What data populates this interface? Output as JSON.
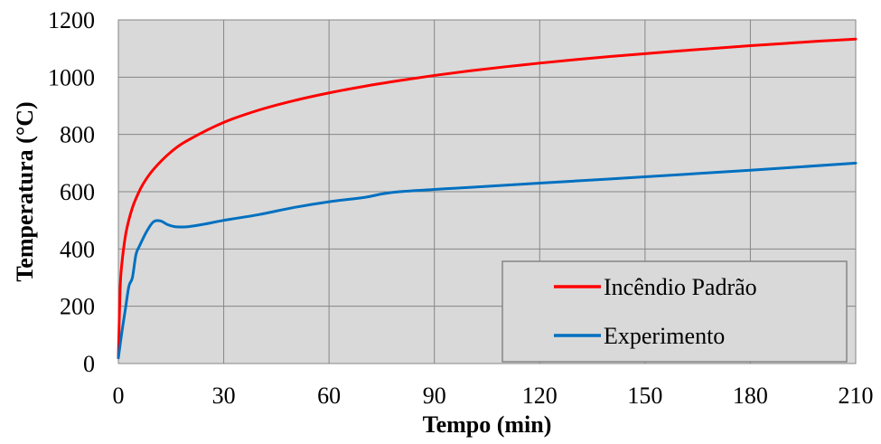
{
  "chart_data": {
    "type": "line",
    "xlabel": "Tempo (min)",
    "ylabel": "Temperatura (°C)",
    "xlim": [
      0,
      210
    ],
    "ylim": [
      0,
      1200
    ],
    "xticks": [
      0,
      30,
      60,
      90,
      120,
      150,
      180,
      210
    ],
    "yticks": [
      0,
      200,
      400,
      600,
      800,
      1000,
      1200
    ],
    "grid": true,
    "legend_position": "bottom-right",
    "background_color": "#d9d9d9",
    "series": [
      {
        "name": "Incêndio Padrão",
        "color": "#ff0000",
        "x": [
          0,
          0.5,
          1,
          2,
          3,
          4,
          5,
          7,
          10,
          15,
          20,
          30,
          40,
          50,
          60,
          70,
          80,
          90,
          100,
          110,
          120,
          130,
          140,
          150,
          160,
          170,
          180,
          190,
          200,
          210
        ],
        "y": [
          20,
          261,
          349,
          445,
          502,
          544,
          576,
          626,
          678,
          739,
          781,
          842,
          885,
          918,
          945,
          968,
          988,
          1006,
          1022,
          1036,
          1049,
          1061,
          1072,
          1082,
          1092,
          1101,
          1110,
          1118,
          1126,
          1133
        ]
      },
      {
        "name": "Experimento",
        "color": "#0070c0",
        "x": [
          0,
          1,
          2,
          3,
          4,
          5,
          6,
          8,
          10,
          12,
          14,
          16,
          18,
          20,
          25,
          30,
          40,
          50,
          60,
          70,
          75,
          80,
          90,
          100,
          120,
          150,
          180,
          210
        ],
        "y": [
          20,
          110,
          190,
          270,
          300,
          380,
          410,
          460,
          495,
          498,
          485,
          478,
          477,
          478,
          488,
          500,
          520,
          545,
          565,
          580,
          592,
          600,
          608,
          615,
          630,
          652,
          675,
          700
        ]
      }
    ]
  }
}
